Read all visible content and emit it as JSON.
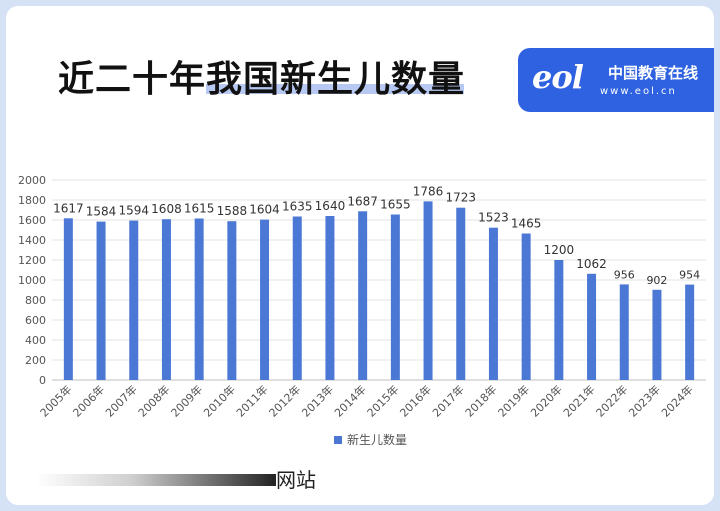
{
  "title": "近二十年我国新生儿数量",
  "logo": {
    "mark": "eol",
    "name": "中国教育在线",
    "url": "www.eol.cn"
  },
  "footer": {
    "label": "网站"
  },
  "chart_data": {
    "type": "bar",
    "categories": [
      "2005年",
      "2006年",
      "2007年",
      "2008年",
      "2009年",
      "2010年",
      "2011年",
      "2012年",
      "2013年",
      "2014年",
      "2015年",
      "2016年",
      "2017年",
      "2018年",
      "2019年",
      "2020年",
      "2021年",
      "2022年",
      "2023年",
      "2024年"
    ],
    "series": [
      {
        "name": "新生儿数量",
        "values": [
          1617,
          1584,
          1594,
          1608,
          1615,
          1588,
          1604,
          1635,
          1640,
          1687,
          1655,
          1786,
          1723,
          1523,
          1465,
          1200,
          1062,
          956,
          902,
          954
        ]
      }
    ],
    "yticks": [
      0,
      200,
      400,
      600,
      800,
      1000,
      1200,
      1400,
      1600,
      1800,
      2000
    ],
    "ylim": [
      0,
      2000
    ],
    "grid": true,
    "legend": "bottom",
    "bar_color": "#4a78d4",
    "xlabel": "",
    "ylabel": ""
  }
}
